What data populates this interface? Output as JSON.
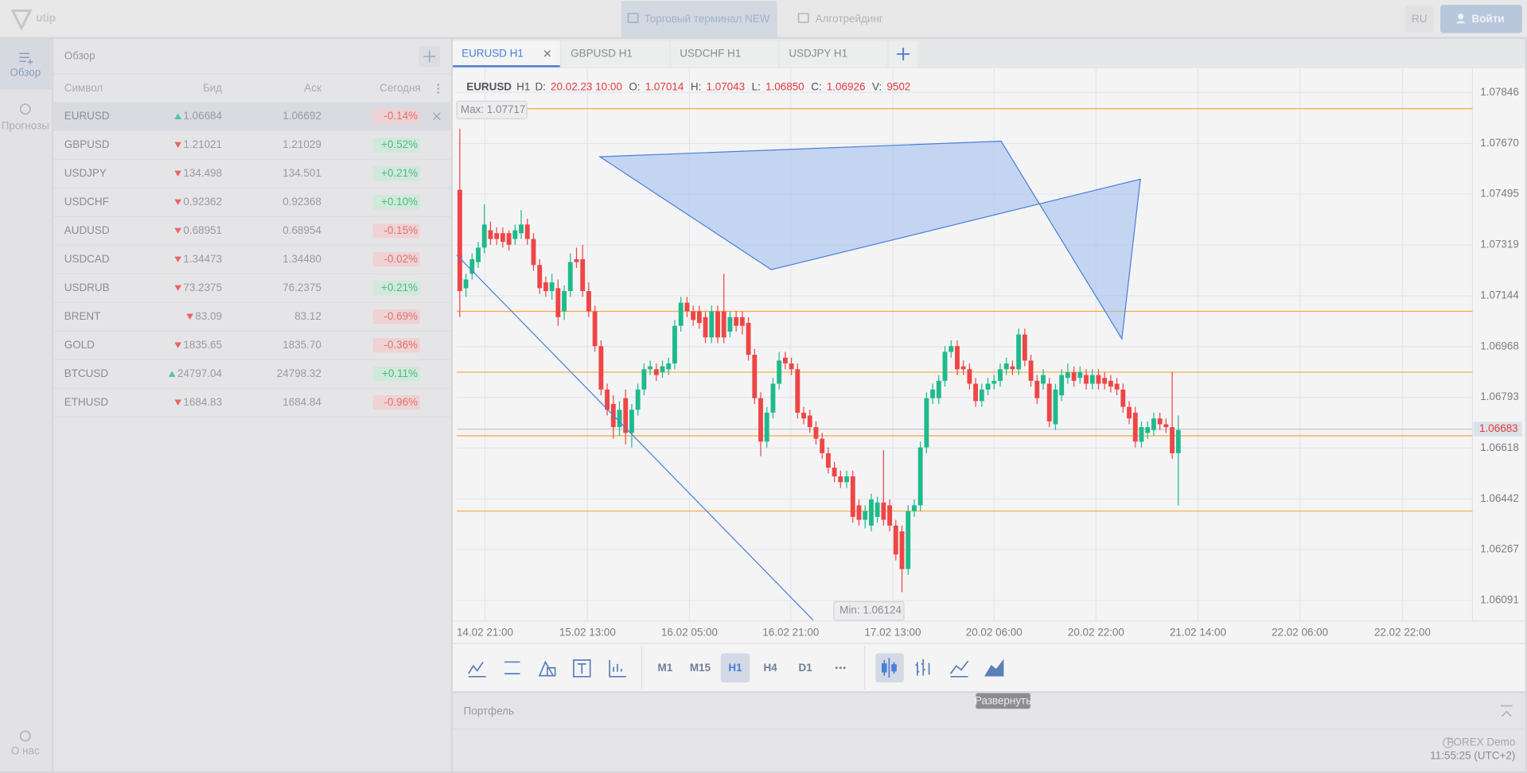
{
  "header": {
    "logo": "utip",
    "tabs": [
      "Торговый терминал NEW",
      "Алготрейдинг"
    ],
    "active_tab": 0,
    "language": "RU",
    "login": "Войти"
  },
  "sidebar": {
    "items": [
      "Обзор",
      "Прогнозы"
    ],
    "footer": "О нас"
  },
  "watchlist": {
    "title": "Обзор",
    "columns": [
      "Символ",
      "Бид",
      "Аск",
      "Сегодня"
    ],
    "rows": [
      {
        "symbol": "EURUSD",
        "direction": "up",
        "bid": "1.06684",
        "ask": "1.06692",
        "change": "-0.14%"
      },
      {
        "symbol": "GBPUSD",
        "direction": "down",
        "bid": "1.21021",
        "ask": "1.21029",
        "change": "+0.52%"
      },
      {
        "symbol": "USDJPY",
        "direction": "down",
        "bid": "134.498",
        "ask": "134.501",
        "change": "+0.21%"
      },
      {
        "symbol": "USDCHF",
        "direction": "down",
        "bid": "0.92362",
        "ask": "0.92368",
        "change": "+0.10%"
      },
      {
        "symbol": "AUDUSD",
        "direction": "down",
        "bid": "0.68951",
        "ask": "0.68954",
        "change": "-0.15%"
      },
      {
        "symbol": "USDCAD",
        "direction": "down",
        "bid": "1.34473",
        "ask": "1.34480",
        "change": "-0.02%"
      },
      {
        "symbol": "USDRUB",
        "direction": "down",
        "bid": "73.2375",
        "ask": "76.2375",
        "change": "+0.21%"
      },
      {
        "symbol": "BRENT",
        "direction": "down",
        "bid": "83.09",
        "ask": "83.12",
        "change": "-0.69%"
      },
      {
        "symbol": "GOLD",
        "direction": "down",
        "bid": "1835.65",
        "ask": "1835.70",
        "change": "-0.36%"
      },
      {
        "symbol": "BTCUSD",
        "direction": "up",
        "bid": "24797.04",
        "ask": "24798.32",
        "change": "+0.11%"
      },
      {
        "symbol": "ETHUSD",
        "direction": "down",
        "bid": "1684.83",
        "ask": "1684.84",
        "change": "-0.96%"
      }
    ]
  },
  "chart_tabs": [
    "EURUSD H1",
    "GBPUSD H1",
    "USDCHF H1",
    "USDJPY H1"
  ],
  "active_chart_tab": 0,
  "chart_data": {
    "type": "candlestick",
    "symbol": "EURUSD",
    "timeframe": "H1",
    "info": [
      {
        "label": "D:",
        "value": "20.02.23 10:00"
      },
      {
        "label": "O:",
        "value": "1.07014"
      },
      {
        "label": "H:",
        "value": "1.07043"
      },
      {
        "label": "L:",
        "value": "1.06850"
      },
      {
        "label": "C:",
        "value": "1.06926"
      },
      {
        "label": "V:",
        "value": "9502"
      }
    ],
    "up_color": "#1fba8c",
    "down_color": "#ee4646",
    "level_color": "#f5a83a",
    "grid": true,
    "xlim": [
      -0.5,
      164.9
    ],
    "xticks": [
      {
        "value": 4.1,
        "label": "14.02 21:00"
      },
      {
        "value": 20.8,
        "label": "15.02 13:00"
      },
      {
        "value": 37.4,
        "label": "16.02 05:00"
      },
      {
        "value": 53.9,
        "label": "16.02 21:00"
      },
      {
        "value": 70.5,
        "label": "17.02 13:00"
      },
      {
        "value": 87,
        "label": "20.02 06:00"
      },
      {
        "value": 103.6,
        "label": "20.02 22:00"
      },
      {
        "value": 120.2,
        "label": "21.02 14:00"
      },
      {
        "value": 136.8,
        "label": "22.02 06:00"
      },
      {
        "value": 153.5,
        "label": "22.02 22:00"
      }
    ],
    "ylim": [
      1.0602,
      1.0793
    ],
    "yticks": [
      1.07846,
      {
        "value": 1.0767,
        "label": "1.07670"
      },
      1.07495,
      1.07319,
      1.07144,
      1.06968,
      1.06793,
      1.06618,
      1.06442,
      1.06267,
      1.06091
    ],
    "levels": [
      1.0779,
      1.0709,
      1.0688,
      1.0666,
      1.064
    ],
    "current_price": 1.06683,
    "current_price_label": "1.06683",
    "max_label": "Max: 1.07717",
    "min_label": "Min: 1.06124",
    "candles": [
      [
        1.0751,
        1.0772,
        1.0707,
        1.0716
      ],
      [
        1.0717,
        1.0722,
        1.0714,
        1.072
      ],
      [
        1.0722,
        1.0729,
        1.072,
        1.0727
      ],
      [
        1.0726,
        1.0733,
        1.0724,
        1.0731
      ],
      [
        1.0731,
        1.0746,
        1.0729,
        1.0739
      ],
      [
        1.0737,
        1.074,
        1.0732,
        1.0734
      ],
      [
        1.0736,
        1.0738,
        1.0732,
        1.0734
      ],
      [
        1.0736,
        1.0738,
        1.0731,
        1.0733
      ],
      [
        1.0736,
        1.0737,
        1.073,
        1.0732
      ],
      [
        1.0734,
        1.0739,
        1.0732,
        1.0737
      ],
      [
        1.0736,
        1.0744,
        1.0734,
        1.0739
      ],
      [
        1.0739,
        1.0741,
        1.0732,
        1.0734
      ],
      [
        1.0734,
        1.0736,
        1.0723,
        1.0725
      ],
      [
        1.0725,
        1.0727,
        1.0715,
        1.0717
      ],
      [
        1.0719,
        1.0721,
        1.0714,
        1.0716
      ],
      [
        1.0716,
        1.0722,
        1.0713,
        1.0719
      ],
      [
        1.0717,
        1.072,
        1.0704,
        1.0707
      ],
      [
        1.0709,
        1.0718,
        1.0706,
        1.0716
      ],
      [
        1.0716,
        1.0729,
        1.0714,
        1.0726
      ],
      [
        1.0727,
        1.0731,
        1.0724,
        1.0726
      ],
      [
        1.0727,
        1.0732,
        1.0714,
        1.0716
      ],
      [
        1.0716,
        1.0719,
        1.0707,
        1.0709
      ],
      [
        1.0709,
        1.0711,
        1.0695,
        1.0697
      ],
      [
        1.0697,
        1.0699,
        1.068,
        1.0682
      ],
      [
        1.0682,
        1.0684,
        1.0673,
        1.0675
      ],
      [
        1.0677,
        1.068,
        1.0665,
        1.0669
      ],
      [
        1.0669,
        1.0678,
        1.0666,
        1.0675
      ],
      [
        1.0679,
        1.0682,
        1.0663,
        1.0667
      ],
      [
        1.0667,
        1.0677,
        1.0662,
        1.0675
      ],
      [
        1.0675,
        1.0684,
        1.0673,
        1.0682
      ],
      [
        1.0682,
        1.0691,
        1.068,
        1.0689
      ],
      [
        1.0689,
        1.0692,
        1.0687,
        1.069
      ],
      [
        1.0689,
        1.0691,
        1.0685,
        1.0687
      ],
      [
        1.0688,
        1.0692,
        1.0686,
        1.069
      ],
      [
        1.0689,
        1.0693,
        1.0687,
        1.0691
      ],
      [
        1.0691,
        1.0706,
        1.0689,
        1.0704
      ],
      [
        1.0704,
        1.0714,
        1.0702,
        1.0712
      ],
      [
        1.0712,
        1.0714,
        1.0707,
        1.0709
      ],
      [
        1.0709,
        1.0711,
        1.0704,
        1.0706
      ],
      [
        1.0709,
        1.0711,
        1.0703,
        1.0705
      ],
      [
        1.0707,
        1.0709,
        1.0698,
        1.07
      ],
      [
        1.07,
        1.0711,
        1.0698,
        1.0709
      ],
      [
        1.0709,
        1.0711,
        1.0698,
        1.07
      ],
      [
        1.0709,
        1.0722,
        1.0698,
        1.07
      ],
      [
        1.0702,
        1.0709,
        1.07,
        1.0707
      ],
      [
        1.0707,
        1.0709,
        1.0702,
        1.0704
      ],
      [
        1.0707,
        1.0709,
        1.0701,
        1.0704
      ],
      [
        1.0705,
        1.0707,
        1.0692,
        1.0694
      ],
      [
        1.0694,
        1.0696,
        1.0677,
        1.0679
      ],
      [
        1.0679,
        1.0681,
        1.0659,
        1.0664
      ],
      [
        1.0664,
        1.0676,
        1.0662,
        1.0674
      ],
      [
        1.0674,
        1.0686,
        1.0672,
        1.0684
      ],
      [
        1.0684,
        1.0695,
        1.0682,
        1.0692
      ],
      [
        1.0693,
        1.0695,
        1.0689,
        1.0691
      ],
      [
        1.0691,
        1.0693,
        1.0687,
        1.0689
      ],
      [
        1.0689,
        1.0691,
        1.0672,
        1.0674
      ],
      [
        1.0674,
        1.0676,
        1.067,
        1.0672
      ],
      [
        1.0673,
        1.0675,
        1.0667,
        1.0669
      ],
      [
        1.0669,
        1.0671,
        1.0663,
        1.0665
      ],
      [
        1.0665,
        1.0667,
        1.0658,
        1.066
      ],
      [
        1.066,
        1.0662,
        1.0653,
        1.0655
      ],
      [
        1.0655,
        1.0657,
        1.065,
        1.0652
      ],
      [
        1.0652,
        1.0654,
        1.0648,
        1.065
      ],
      [
        1.065,
        1.0654,
        1.0648,
        1.0652
      ],
      [
        1.0652,
        1.0654,
        1.0636,
        1.0638
      ],
      [
        1.0642,
        1.0644,
        1.0635,
        1.0637
      ],
      [
        1.0637,
        1.0642,
        1.0634,
        1.064
      ],
      [
        1.0635,
        1.0646,
        1.0633,
        1.0644
      ],
      [
        1.0638,
        1.0645,
        1.0636,
        1.0643
      ],
      [
        1.0643,
        1.0661,
        1.0635,
        1.0637
      ],
      [
        1.0642,
        1.0644,
        1.0633,
        1.0635
      ],
      [
        1.0635,
        1.0637,
        1.0623,
        1.0625
      ],
      [
        1.0633,
        1.0635,
        1.0612,
        1.062
      ],
      [
        1.062,
        1.0642,
        1.0618,
        1.064
      ],
      [
        1.064,
        1.0644,
        1.0638,
        1.0642
      ],
      [
        1.0642,
        1.0664,
        1.064,
        1.0662
      ],
      [
        1.0662,
        1.0681,
        1.066,
        1.0679
      ],
      [
        1.0679,
        1.0684,
        1.0677,
        1.0682
      ],
      [
        1.0679,
        1.0687,
        1.0677,
        1.0685
      ],
      [
        1.0685,
        1.0697,
        1.0683,
        1.0695
      ],
      [
        1.0695,
        1.0699,
        1.0693,
        1.0697
      ],
      [
        1.0697,
        1.0699,
        1.0687,
        1.0689
      ],
      [
        1.069,
        1.0692,
        1.0687,
        1.0689
      ],
      [
        1.0689,
        1.0691,
        1.0682,
        1.0684
      ],
      [
        1.0684,
        1.0686,
        1.0676,
        1.0678
      ],
      [
        1.0678,
        1.0684,
        1.0676,
        1.0682
      ],
      [
        1.0682,
        1.0686,
        1.068,
        1.0684
      ],
      [
        1.0684,
        1.0687,
        1.0682,
        1.0685
      ],
      [
        1.0685,
        1.0691,
        1.0683,
        1.0689
      ],
      [
        1.0689,
        1.0693,
        1.0687,
        1.0691
      ],
      [
        1.069,
        1.0692,
        1.0687,
        1.0689
      ],
      [
        1.0689,
        1.0703,
        1.0687,
        1.0701
      ],
      [
        1.0701,
        1.0703,
        1.069,
        1.0692
      ],
      [
        1.0692,
        1.0694,
        1.0683,
        1.0685
      ],
      [
        1.0685,
        1.0687,
        1.0677,
        1.0679
      ],
      [
        1.0684,
        1.0689,
        1.0682,
        1.0687
      ],
      [
        1.0684,
        1.0686,
        1.0669,
        1.0671
      ],
      [
        1.067,
        1.0684,
        1.0668,
        1.0682
      ],
      [
        1.068,
        1.0689,
        1.0678,
        1.0687
      ],
      [
        1.0686,
        1.0691,
        1.0684,
        1.0688
      ],
      [
        1.0688,
        1.069,
        1.0683,
        1.0685
      ],
      [
        1.0686,
        1.069,
        1.0684,
        1.0688
      ],
      [
        1.0687,
        1.0689,
        1.0682,
        1.0684
      ],
      [
        1.0684,
        1.0689,
        1.0682,
        1.0687
      ],
      [
        1.0687,
        1.0689,
        1.0682,
        1.0684
      ],
      [
        1.0686,
        1.0688,
        1.0682,
        1.0684
      ],
      [
        1.0685,
        1.0687,
        1.0681,
        1.0683
      ],
      [
        1.0684,
        1.0686,
        1.068,
        1.0682
      ],
      [
        1.0682,
        1.0684,
        1.0674,
        1.0676
      ],
      [
        1.0676,
        1.0678,
        1.067,
        1.0672
      ],
      [
        1.0674,
        1.0676,
        1.0662,
        1.0664
      ],
      [
        1.0664,
        1.0671,
        1.0662,
        1.0669
      ],
      [
        1.0667,
        1.0671,
        1.0665,
        1.0669
      ],
      [
        1.0668,
        1.0674,
        1.0666,
        1.0672
      ],
      [
        1.0672,
        1.0674,
        1.0668,
        1.067
      ],
      [
        1.067,
        1.0672,
        1.0667,
        1.0669
      ],
      [
        1.0669,
        1.0688,
        1.0658,
        1.066
      ],
      [
        1.066,
        1.0673,
        1.0642,
        1.0668
      ]
    ]
  },
  "toolbar": {
    "timeframes": [
      "M1",
      "M15",
      "H1",
      "H4",
      "D1"
    ],
    "active_timeframe": 2,
    "tooltip": "Развернуть"
  },
  "portfolio": {
    "title": "Портфель",
    "server": "FOREX Demo",
    "time": "11:55:25 (UTC+2)"
  }
}
